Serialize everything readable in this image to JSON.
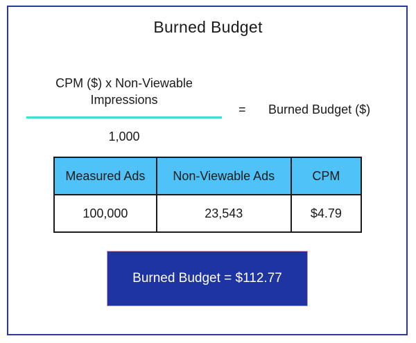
{
  "title": "Burned Budget",
  "formula": {
    "numerator": "CPM ($) x Non-Viewable Impressions",
    "denominator": "1,000",
    "equals": "=",
    "result": "Burned Budget ($)"
  },
  "table": {
    "headers": [
      "Measured Ads",
      "Non-Viewable Ads",
      "CPM"
    ],
    "row": [
      "100,000",
      "23,543",
      "$4.79"
    ]
  },
  "answer": "Burned Budget = $112.77",
  "colors": {
    "frame_border": "#2a3b95",
    "fraction_line": "#3de0cc",
    "header_fill": "#4fc3f7",
    "answer_fill": "#1e34a3"
  }
}
